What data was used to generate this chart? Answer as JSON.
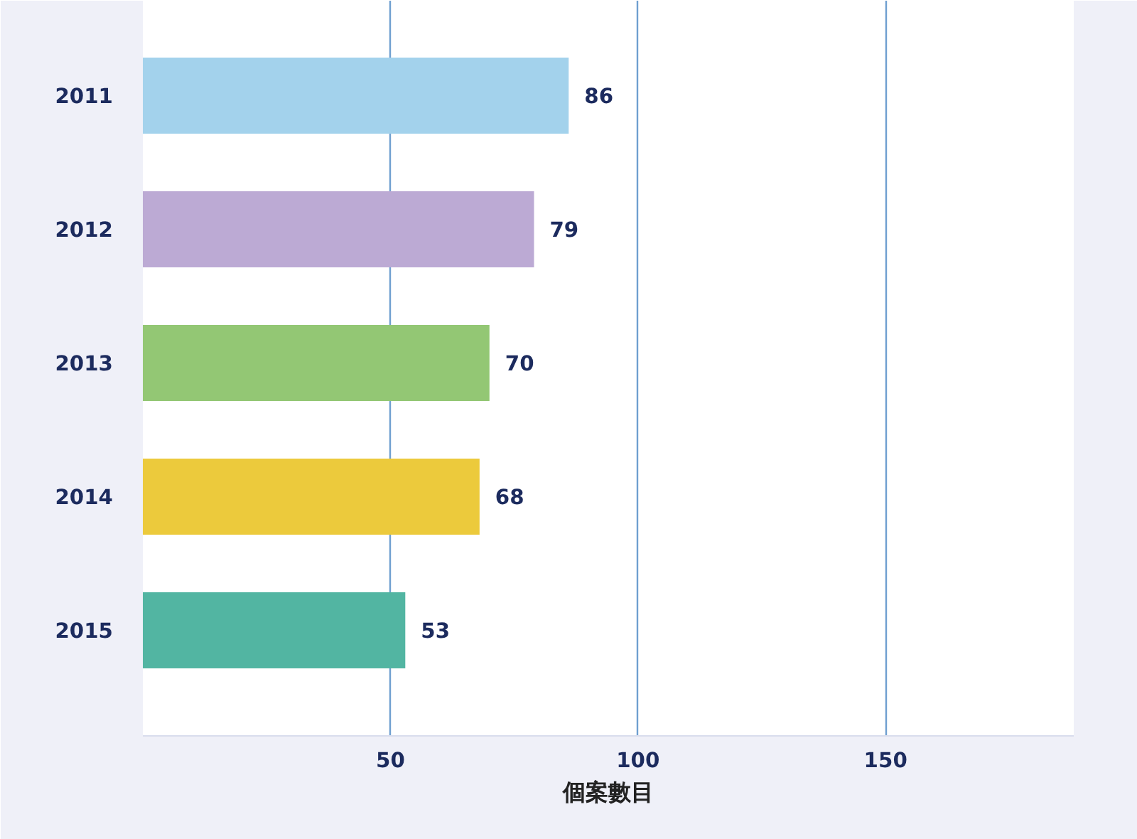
{
  "chart_data": {
    "type": "bar",
    "orientation": "horizontal",
    "xlabel": "個案數目",
    "categories": [
      "2011",
      "2012",
      "2013",
      "2014",
      "2015"
    ],
    "values": [
      86,
      79,
      70,
      68,
      53
    ],
    "colors": [
      "#a3d2ec",
      "#bcaad4",
      "#93c774",
      "#ecca3c",
      "#52b5a2"
    ],
    "xlim": [
      0,
      188
    ],
    "xticks": [
      50,
      100,
      150
    ],
    "grid": "x",
    "data_labels": true
  }
}
